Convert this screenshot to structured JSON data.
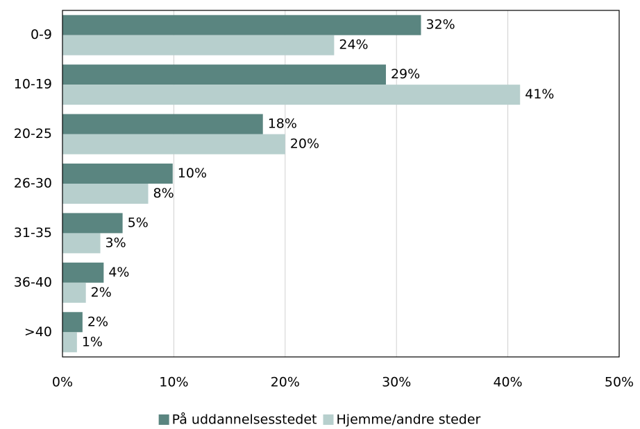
{
  "chart_data": {
    "type": "bar",
    "orientation": "horizontal",
    "categories": [
      "0-9",
      "10-19",
      "20-25",
      "26-30",
      "31-35",
      "36-40",
      ">40"
    ],
    "series": [
      {
        "name": "På uddannelsesstedet",
        "color": "#5a8580",
        "values": [
          32.2,
          29.05,
          18.0,
          9.9,
          5.4,
          3.7,
          1.8
        ],
        "value_labels": [
          "32%",
          "29%",
          "18%",
          "10%",
          "5%",
          "4%",
          "2%"
        ]
      },
      {
        "name": "Hjemme/andre steder",
        "color": "#b7cfcd",
        "values": [
          24.4,
          41.1,
          20.0,
          7.7,
          3.4,
          2.1,
          1.3
        ],
        "value_labels": [
          "24%",
          "41%",
          "20%",
          "8%",
          "3%",
          "2%",
          "1%"
        ]
      }
    ],
    "xlim": [
      0,
      50
    ],
    "xticks": [
      {
        "value": 0,
        "label": "0%"
      },
      {
        "value": 10,
        "label": "10%"
      },
      {
        "value": 20,
        "label": "20%"
      },
      {
        "value": 30,
        "label": "30%"
      },
      {
        "value": 40,
        "label": "40%"
      },
      {
        "value": 50,
        "label": "50%"
      }
    ],
    "grid": true,
    "legend": "bottom"
  }
}
